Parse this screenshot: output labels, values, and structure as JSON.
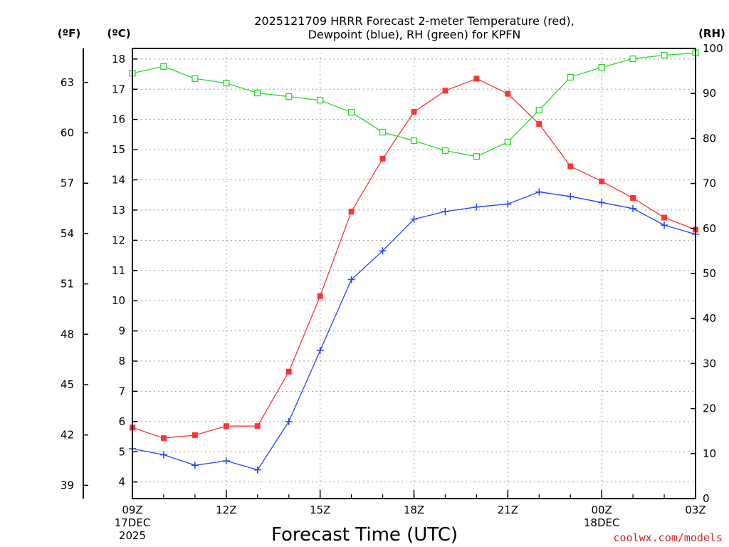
{
  "chart_data": {
    "type": "line",
    "title": [
      "2025121709 HRRR Forecast 2-meter Temperature (red),",
      "Dewpoint (blue), RH (green) for KPFN"
    ],
    "xlabel": "Forecast Time (UTC)",
    "credit": "coolwx.com/models",
    "x_ticks": [
      {
        "hour": 0,
        "lines": [
          "09Z",
          "17DEC",
          "2025"
        ]
      },
      {
        "hour": 3,
        "lines": [
          "12Z"
        ]
      },
      {
        "hour": 6,
        "lines": [
          "15Z"
        ]
      },
      {
        "hour": 9,
        "lines": [
          "18Z"
        ]
      },
      {
        "hour": 12,
        "lines": [
          "21Z"
        ]
      },
      {
        "hour": 15,
        "lines": [
          "00Z",
          "18DEC"
        ]
      },
      {
        "hour": 18,
        "lines": [
          "03Z"
        ]
      }
    ],
    "xlim": [
      0,
      18
    ],
    "x": [
      0,
      1,
      2,
      3,
      4,
      5,
      6,
      7,
      8,
      9,
      10,
      11,
      12,
      13,
      14,
      15,
      16,
      17,
      18
    ],
    "axes": {
      "celsius": {
        "unit_label": "(ºC)",
        "ylim": [
          3.45,
          18.35
        ],
        "ticks": [
          4,
          5,
          6,
          7,
          8,
          9,
          10,
          11,
          12,
          13,
          14,
          15,
          16,
          17,
          18
        ]
      },
      "fahrenheit": {
        "unit_label": "(ºF)",
        "ticks": [
          39,
          42,
          45,
          48,
          51,
          54,
          57,
          60,
          63
        ]
      },
      "rh": {
        "unit_label": "(RH)",
        "ylim": [
          0,
          100
        ],
        "ticks": [
          0,
          10,
          20,
          30,
          40,
          50,
          60,
          70,
          80,
          90,
          100
        ]
      }
    },
    "series": [
      {
        "name": "Temperature",
        "axis": "celsius",
        "color": "#ff3333",
        "marker": "filled-square",
        "values": [
          5.8,
          5.45,
          5.55,
          5.85,
          5.85,
          7.65,
          10.15,
          12.95,
          14.7,
          16.25,
          16.95,
          17.35,
          16.85,
          15.85,
          14.45,
          13.95,
          13.4,
          12.75,
          12.35
        ]
      },
      {
        "name": "Dewpoint",
        "axis": "celsius",
        "color": "#2244ff",
        "marker": "plus",
        "values": [
          5.1,
          4.9,
          4.55,
          4.7,
          4.4,
          6.0,
          8.35,
          10.7,
          11.65,
          12.7,
          12.95,
          13.1,
          13.2,
          13.6,
          13.45,
          13.25,
          13.05,
          12.5,
          12.2
        ]
      },
      {
        "name": "RH",
        "axis": "rh",
        "color": "#22dd22",
        "marker": "open-square",
        "values": [
          94.5,
          96.0,
          93.3,
          92.3,
          90.1,
          89.3,
          88.5,
          85.8,
          81.4,
          79.5,
          77.3,
          76.0,
          79.2,
          86.3,
          93.6,
          95.8,
          97.7,
          98.5,
          99.0
        ]
      }
    ]
  }
}
